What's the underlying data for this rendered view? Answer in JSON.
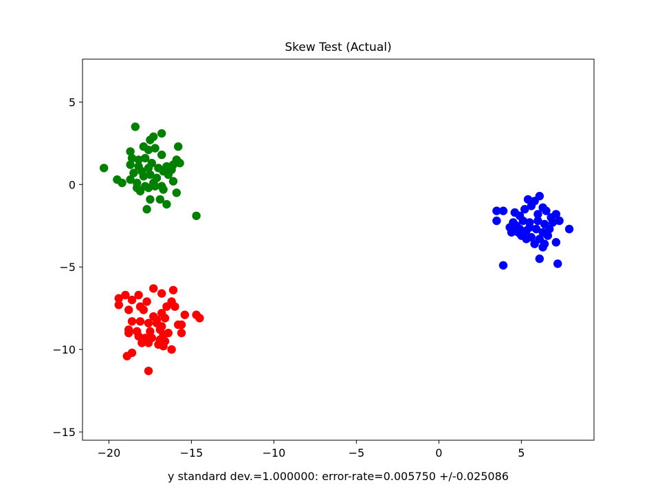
{
  "chart_data": {
    "type": "scatter",
    "title": "Skew Test (Actual)",
    "xlabel": "y standard dev.=1.000000: error-rate=0.005750 +/-0.025086",
    "ylabel": "",
    "xlim": [
      -21.6,
      9.4
    ],
    "ylim": [
      -15.5,
      7.6
    ],
    "xticks": [
      -20,
      -15,
      -10,
      -5,
      0,
      5
    ],
    "yticks": [
      -15,
      -10,
      -5,
      0,
      5
    ],
    "xtick_labels": [
      "−20",
      "−15",
      "−10",
      "−5",
      "0",
      "5"
    ],
    "ytick_labels": [
      "−15",
      "−10",
      "−5",
      "0",
      "5"
    ],
    "grid": false,
    "series": [
      {
        "color": "#008000",
        "points": [
          [
            -20.3,
            1.0
          ],
          [
            -18.4,
            3.5
          ],
          [
            -16.8,
            3.1
          ],
          [
            -17.3,
            2.9
          ],
          [
            -17.5,
            2.7
          ],
          [
            -17.9,
            2.3
          ],
          [
            -17.6,
            2.1
          ],
          [
            -17.2,
            2.2
          ],
          [
            -15.8,
            2.3
          ],
          [
            -18.7,
            2.0
          ],
          [
            -18.6,
            1.6
          ],
          [
            -18.2,
            1.5
          ],
          [
            -17.8,
            1.6
          ],
          [
            -17.4,
            1.3
          ],
          [
            -16.8,
            1.8
          ],
          [
            -16.1,
            1.2
          ],
          [
            -15.7,
            1.3
          ],
          [
            -15.9,
            1.5
          ],
          [
            -16.5,
            1.1
          ],
          [
            -17.0,
            1.0
          ],
          [
            -17.6,
            1.0
          ],
          [
            -18.2,
            1.1
          ],
          [
            -18.7,
            1.2
          ],
          [
            -18.5,
            0.7
          ],
          [
            -18.0,
            0.8
          ],
          [
            -17.5,
            0.6
          ],
          [
            -17.1,
            0.4
          ],
          [
            -16.7,
            0.8
          ],
          [
            -16.2,
            0.9
          ],
          [
            -19.5,
            0.3
          ],
          [
            -19.2,
            0.1
          ],
          [
            -18.7,
            0.3
          ],
          [
            -18.3,
            0.1
          ],
          [
            -17.8,
            -0.1
          ],
          [
            -17.3,
            0.1
          ],
          [
            -16.8,
            -0.1
          ],
          [
            -16.1,
            0.2
          ],
          [
            -18.3,
            -0.2
          ],
          [
            -18.1,
            -0.4
          ],
          [
            -17.6,
            -0.2
          ],
          [
            -17.2,
            -0.1
          ],
          [
            -16.7,
            -0.3
          ],
          [
            -15.9,
            -0.5
          ],
          [
            -17.5,
            -0.9
          ],
          [
            -16.9,
            -0.9
          ],
          [
            -16.5,
            -1.2
          ],
          [
            -17.7,
            -1.5
          ],
          [
            -14.7,
            -1.9
          ],
          [
            -17.9,
            0.5
          ],
          [
            -16.4,
            0.6
          ]
        ]
      },
      {
        "color": "#0000ff",
        "points": [
          [
            5.4,
            -0.9
          ],
          [
            6.1,
            -0.7
          ],
          [
            5.8,
            -1.0
          ],
          [
            5.6,
            -1.3
          ],
          [
            6.3,
            -1.4
          ],
          [
            6.5,
            -1.6
          ],
          [
            7.1,
            -1.8
          ],
          [
            6.8,
            -2.0
          ],
          [
            5.2,
            -1.5
          ],
          [
            4.6,
            -1.7
          ],
          [
            4.9,
            -1.9
          ],
          [
            3.5,
            -1.6
          ],
          [
            3.9,
            -1.6
          ],
          [
            3.5,
            -2.2
          ],
          [
            4.5,
            -2.3
          ],
          [
            4.7,
            -2.5
          ],
          [
            5.1,
            -2.2
          ],
          [
            5.5,
            -2.3
          ],
          [
            6.0,
            -2.2
          ],
          [
            6.4,
            -2.4
          ],
          [
            6.9,
            -2.3
          ],
          [
            7.3,
            -2.2
          ],
          [
            7.9,
            -2.7
          ],
          [
            4.3,
            -2.6
          ],
          [
            4.4,
            -2.9
          ],
          [
            4.8,
            -2.9
          ],
          [
            5.3,
            -2.8
          ],
          [
            5.9,
            -2.7
          ],
          [
            6.3,
            -2.9
          ],
          [
            6.7,
            -2.7
          ],
          [
            5.0,
            -3.1
          ],
          [
            5.6,
            -3.2
          ],
          [
            6.1,
            -3.3
          ],
          [
            5.8,
            -3.6
          ],
          [
            6.4,
            -3.6
          ],
          [
            6.3,
            -3.8
          ],
          [
            7.1,
            -3.5
          ],
          [
            5.3,
            -3.3
          ],
          [
            6.1,
            -4.5
          ],
          [
            3.9,
            -4.9
          ],
          [
            7.2,
            -4.8
          ],
          [
            5.5,
            -2.6
          ],
          [
            6.6,
            -3.1
          ],
          [
            4.9,
            -2.7
          ],
          [
            6.0,
            -1.8
          ]
        ]
      },
      {
        "color": "#ff0000",
        "points": [
          [
            -17.3,
            -6.3
          ],
          [
            -16.1,
            -6.4
          ],
          [
            -16.8,
            -6.6
          ],
          [
            -18.2,
            -6.7
          ],
          [
            -19.0,
            -6.7
          ],
          [
            -19.4,
            -6.9
          ],
          [
            -18.6,
            -7.0
          ],
          [
            -17.7,
            -7.1
          ],
          [
            -16.2,
            -7.1
          ],
          [
            -19.4,
            -7.3
          ],
          [
            -18.1,
            -7.4
          ],
          [
            -16.5,
            -7.4
          ],
          [
            -16.0,
            -7.4
          ],
          [
            -18.8,
            -7.6
          ],
          [
            -17.9,
            -7.6
          ],
          [
            -16.8,
            -7.8
          ],
          [
            -15.4,
            -7.9
          ],
          [
            -14.7,
            -7.9
          ],
          [
            -14.5,
            -8.1
          ],
          [
            -17.3,
            -8.0
          ],
          [
            -16.6,
            -8.1
          ],
          [
            -18.6,
            -8.3
          ],
          [
            -18.1,
            -8.3
          ],
          [
            -17.6,
            -8.4
          ],
          [
            -17.1,
            -8.4
          ],
          [
            -16.8,
            -8.6
          ],
          [
            -15.8,
            -8.5
          ],
          [
            -15.6,
            -8.5
          ],
          [
            -18.8,
            -8.8
          ],
          [
            -18.3,
            -8.9
          ],
          [
            -17.5,
            -8.9
          ],
          [
            -16.9,
            -8.8
          ],
          [
            -16.4,
            -9.0
          ],
          [
            -15.6,
            -9.0
          ],
          [
            -18.8,
            -9.0
          ],
          [
            -18.2,
            -9.2
          ],
          [
            -17.8,
            -9.3
          ],
          [
            -17.4,
            -9.3
          ],
          [
            -16.9,
            -9.4
          ],
          [
            -16.6,
            -9.5
          ],
          [
            -18.0,
            -9.6
          ],
          [
            -17.6,
            -9.6
          ],
          [
            -17.0,
            -9.7
          ],
          [
            -16.7,
            -9.8
          ],
          [
            -16.2,
            -10.0
          ],
          [
            -18.6,
            -10.2
          ],
          [
            -18.9,
            -10.4
          ],
          [
            -17.6,
            -11.3
          ],
          [
            -16.7,
            -9.1
          ],
          [
            -17.1,
            -8.2
          ]
        ]
      }
    ]
  }
}
